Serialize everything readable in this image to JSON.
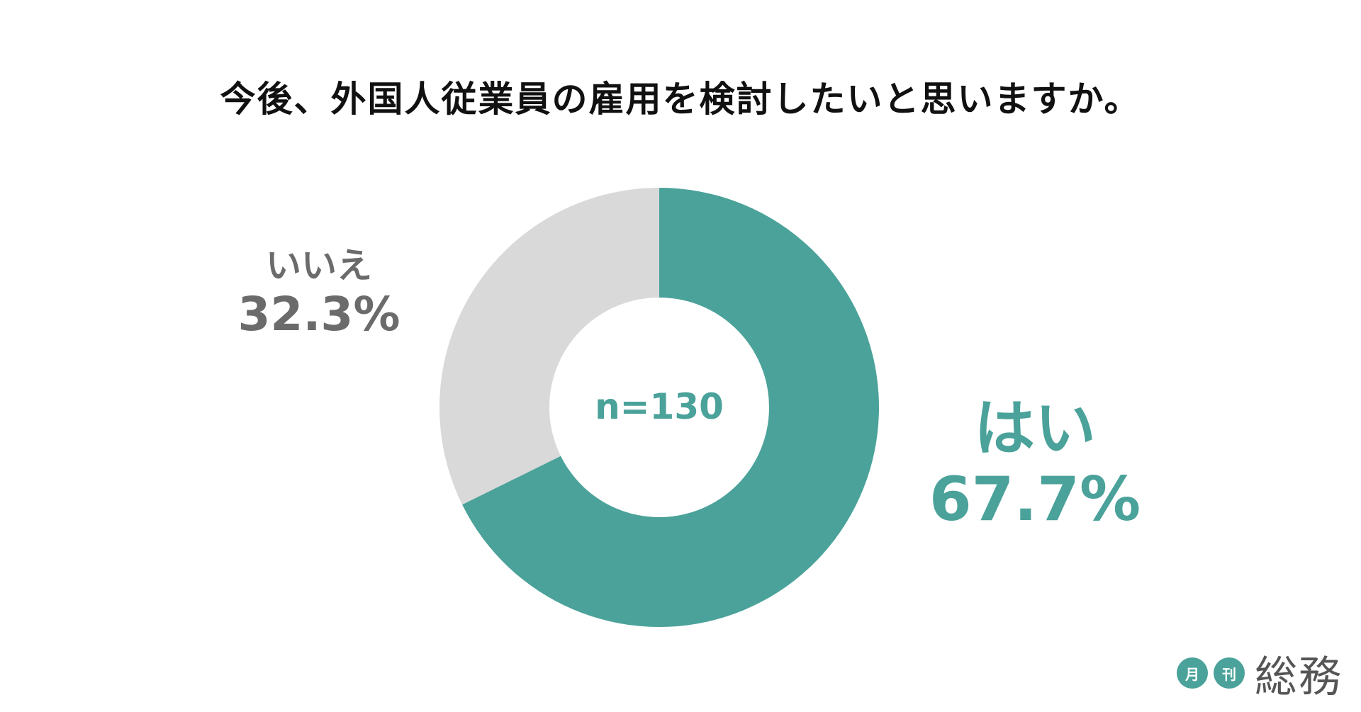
{
  "chart_data": {
    "type": "pie",
    "title": "今後、外国人従業員の雇用を検討したいと思いますか。",
    "center_label": "n=130",
    "slices": [
      {
        "label": "はい",
        "value": 67.7,
        "value_label": "67.7%",
        "color": "#4aa29a"
      },
      {
        "label": "いいえ",
        "value": 32.3,
        "value_label": "32.3%",
        "color": "#d9d9d9"
      }
    ]
  },
  "logo": {
    "badge_1": "月",
    "badge_2": "刊",
    "text": "総務"
  }
}
